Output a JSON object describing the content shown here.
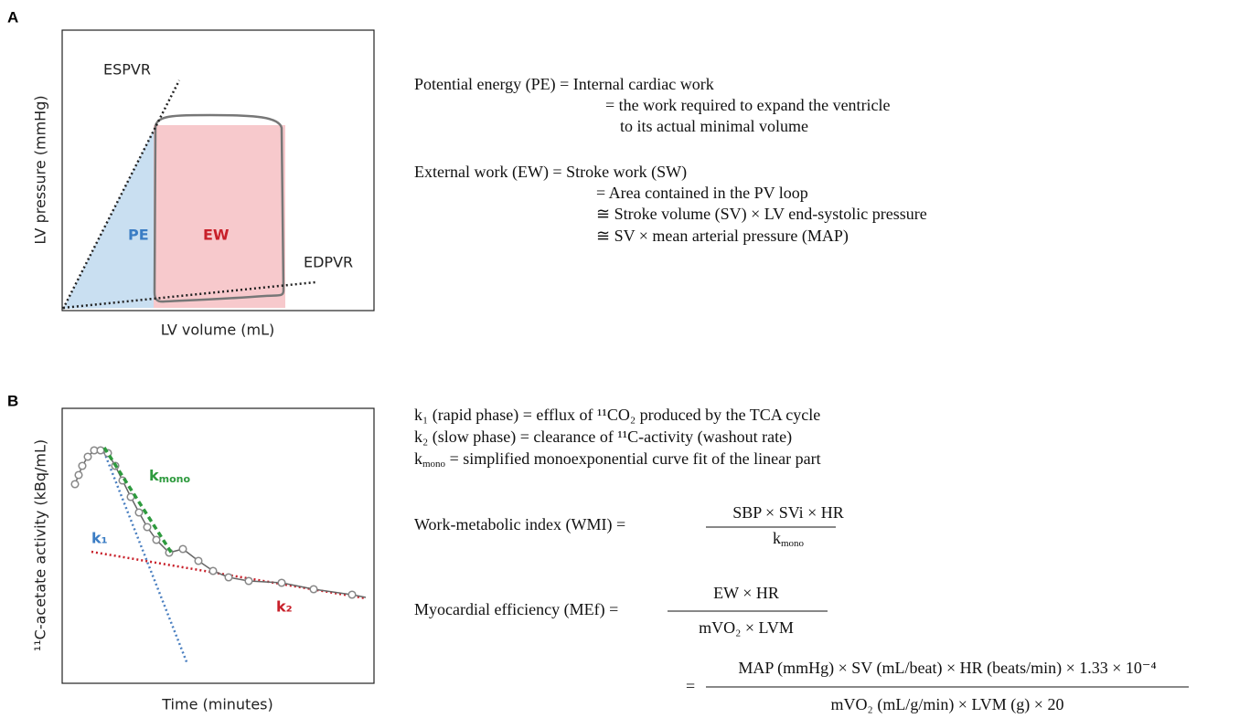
{
  "panel_a": {
    "label": "A",
    "lines": {
      "espvr": "ESPVR",
      "edpvr": "EDPVR"
    },
    "areas": {
      "pe": "PE",
      "ew": "EW"
    },
    "y_axis": "LV pressure (mmHg)",
    "x_axis": "LV volume (mL)",
    "equations": [
      "Potential energy (PE) = Internal cardiac work",
      "= the work required to expand the ventricle",
      "to its actual minimal volume",
      "External work (EW) = Stroke work (SW)",
      "= Area contained in the PV loop",
      "≅ Stroke volume (SV) × LV end-systolic pressure",
      "≅ SV × mean arterial pressure (MAP)"
    ]
  },
  "panel_b": {
    "label": "B",
    "rates": {
      "k1": "k₁",
      "k2": "k₂",
      "kmono": {
        "symbol": "k",
        "sub": "mono"
      }
    },
    "y_axis": "¹¹C-acetate activity (kBq/mL)",
    "x_axis": "Time (minutes)",
    "definitions": [
      "k₁ (rapid phase) = efflux of ¹¹CO₂ produced by the TCA cycle",
      "k₂ (slow phase) = clearance of ¹¹C-activity (washout rate)",
      {
        "symbol": "k",
        "sub": "mono",
        "text": " = simplified monoexponential curve fit of the linear part"
      }
    ],
    "wmi": {
      "label": "Work-metabolic index (WMI) =",
      "numerator": "SBP × SVi × HR",
      "denominator": {
        "symbol": "k",
        "sub": "mono"
      }
    },
    "mef": {
      "label": "Myocardial efficiency (MEf) =",
      "numerator": "EW × HR",
      "denominator": "mVO₂ × LVM"
    },
    "mef_expanded": {
      "equals": "=",
      "numerator": "MAP (mmHg) × SV (mL/beat) × HR (beats/min) × 1.33 × 10⁻⁴",
      "denominator": "mVO₂ (mL/g/min) × LVM (g) × 20"
    }
  }
}
